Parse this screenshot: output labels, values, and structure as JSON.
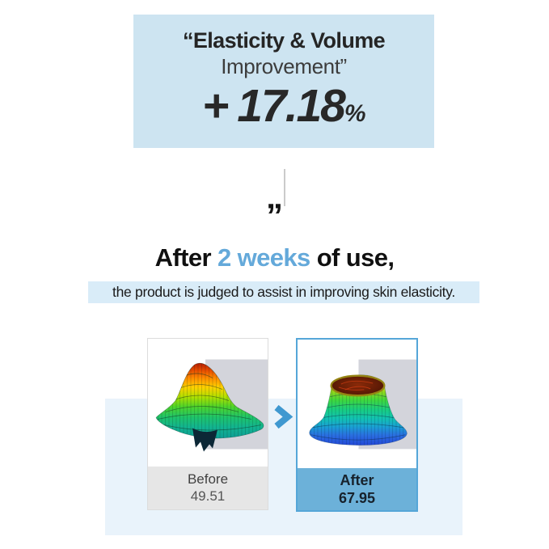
{
  "top_box": {
    "line1": "“Elasticity & Volume",
    "line2": "Improvement”",
    "value_prefix": "+",
    "value": "17.18",
    "value_unit": "%"
  },
  "divider": {
    "quote": "”"
  },
  "heading": {
    "pre": "After ",
    "highlight": "2 weeks",
    "post": " of use,"
  },
  "banner": {
    "text": "the product is judged to assist in improving skin elasticity."
  },
  "comparison": {
    "before": {
      "label": "Before",
      "value": "49.51"
    },
    "after": {
      "label": "After",
      "value": "67.95"
    },
    "arrow_icon": "chevron-right"
  },
  "colors": {
    "headline_box_bg": "#cde4f1",
    "banner_bg": "#d9ecf8",
    "band_bg": "#e9f3fb",
    "highlight_blue": "#64a9da",
    "after_footer_bg": "#6cb1d9",
    "after_card_border": "#55a6d8",
    "before_footer_bg": "#e6e6e6",
    "arrow_blue": "#3f98d0"
  }
}
